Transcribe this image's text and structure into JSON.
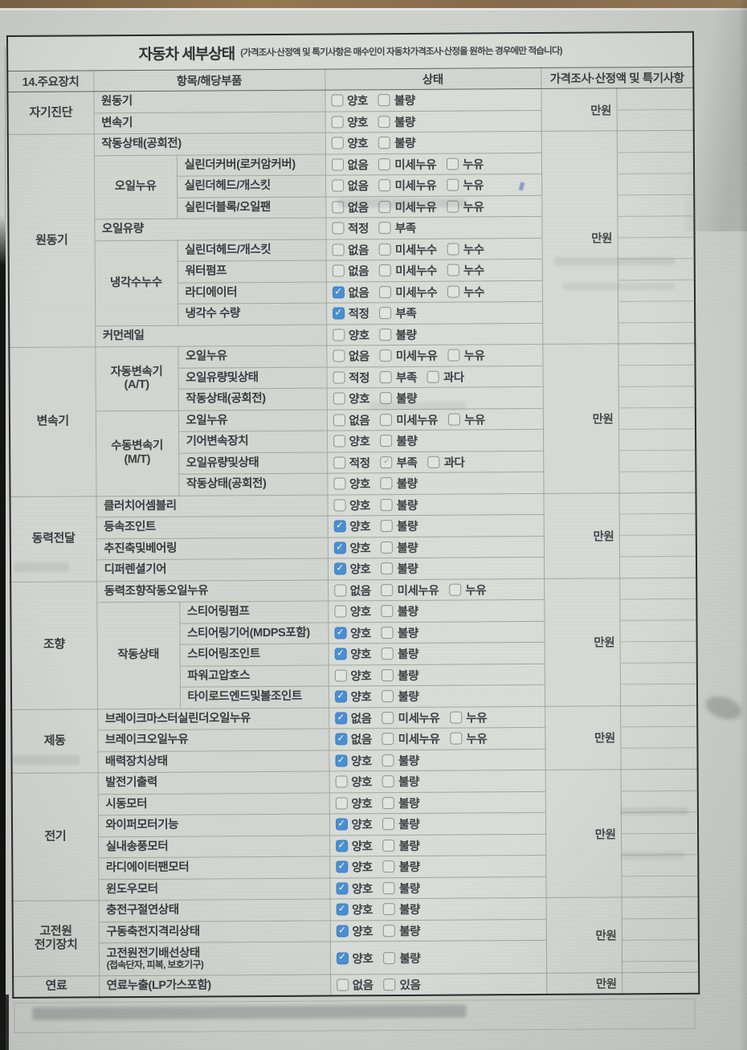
{
  "title": {
    "main": "자동차 세부상태",
    "note": "(가격조사·산정액 및 특기사항은 매수인이 자동차가격조사·산정을 원하는 경우에만 적습니다)"
  },
  "header": {
    "device": "14.주요장치",
    "item": "항목/해당부품",
    "state": "상태",
    "price": "가격조사·산정액 및 특기사항"
  },
  "colors": {
    "checked_blue": "#4a8fd3",
    "paper": "#ced1cc",
    "grid_line": "#a3a8a1"
  },
  "sections": [
    {
      "name": "자기진단",
      "price": "만원",
      "rows": [
        {
          "item": "원동기",
          "options": [
            {
              "label": "양호",
              "mark": "off"
            },
            {
              "label": "불량",
              "mark": "off"
            }
          ]
        },
        {
          "item": "변속기",
          "options": [
            {
              "label": "양호",
              "mark": "off"
            },
            {
              "label": "불량",
              "mark": "off"
            }
          ]
        }
      ]
    },
    {
      "name": "원동기",
      "price": "만원",
      "rows": [
        {
          "item": "작동상태(공회전)",
          "options": [
            {
              "label": "양호",
              "mark": "off"
            },
            {
              "label": "불량",
              "mark": "off"
            }
          ]
        },
        {
          "group": "오일누유",
          "item": "실린더커버(로커암커버)",
          "options": [
            {
              "label": "없음",
              "mark": "off"
            },
            {
              "label": "미세누유",
              "mark": "off"
            },
            {
              "label": "누유",
              "mark": "off"
            }
          ]
        },
        {
          "group": "오일누유",
          "item": "실린더헤드/개스킷",
          "options": [
            {
              "label": "없음",
              "mark": "off"
            },
            {
              "label": "미세누유",
              "mark": "off"
            },
            {
              "label": "누유",
              "mark": "off"
            }
          ]
        },
        {
          "group": "오일누유",
          "item": "실린더블록/오일팬",
          "options": [
            {
              "label": "없음",
              "mark": "off"
            },
            {
              "label": "미세누유",
              "mark": "off"
            },
            {
              "label": "누유",
              "mark": "off"
            }
          ]
        },
        {
          "item": "오일유량",
          "options": [
            {
              "label": "적정",
              "mark": "off"
            },
            {
              "label": "부족",
              "mark": "off"
            }
          ]
        },
        {
          "group": "냉각수누수",
          "item": "실린더헤드/개스킷",
          "options": [
            {
              "label": "없음",
              "mark": "off"
            },
            {
              "label": "미세누수",
              "mark": "off"
            },
            {
              "label": "누수",
              "mark": "off"
            }
          ]
        },
        {
          "group": "냉각수누수",
          "item": "워터펌프",
          "options": [
            {
              "label": "없음",
              "mark": "off"
            },
            {
              "label": "미세누수",
              "mark": "off"
            },
            {
              "label": "누수",
              "mark": "off"
            }
          ]
        },
        {
          "group": "냉각수누수",
          "item": "라디에이터",
          "options": [
            {
              "label": "없음",
              "mark": "on"
            },
            {
              "label": "미세누수",
              "mark": "off"
            },
            {
              "label": "누수",
              "mark": "off"
            }
          ]
        },
        {
          "group": "냉각수누수",
          "item": "냉각수 수량",
          "options": [
            {
              "label": "적정",
              "mark": "on"
            },
            {
              "label": "부족",
              "mark": "off"
            }
          ]
        },
        {
          "item": "커먼레일",
          "options": [
            {
              "label": "양호",
              "mark": "off"
            },
            {
              "label": "불량",
              "mark": "off"
            }
          ]
        }
      ]
    },
    {
      "name": "변속기",
      "price": "만원",
      "rows": [
        {
          "group": "자동변속기\n(A/T)",
          "item": "오일누유",
          "options": [
            {
              "label": "없음",
              "mark": "off"
            },
            {
              "label": "미세누유",
              "mark": "off"
            },
            {
              "label": "누유",
              "mark": "off"
            }
          ]
        },
        {
          "group": "자동변속기\n(A/T)",
          "item": "오일유량및상태",
          "options": [
            {
              "label": "적정",
              "mark": "off"
            },
            {
              "label": "부족",
              "mark": "off"
            },
            {
              "label": "과다",
              "mark": "off"
            }
          ]
        },
        {
          "group": "자동변속기\n(A/T)",
          "item": "작동상태(공회전)",
          "options": [
            {
              "label": "양호",
              "mark": "off"
            },
            {
              "label": "불량",
              "mark": "off"
            }
          ]
        },
        {
          "group": "수동변속기\n(M/T)",
          "item": "오일누유",
          "options": [
            {
              "label": "없음",
              "mark": "off"
            },
            {
              "label": "미세누유",
              "mark": "off"
            },
            {
              "label": "누유",
              "mark": "off"
            }
          ]
        },
        {
          "group": "수동변속기\n(M/T)",
          "item": "기어변속장치",
          "options": [
            {
              "label": "양호",
              "mark": "off"
            },
            {
              "label": "불량",
              "mark": "off"
            }
          ]
        },
        {
          "group": "수동변속기\n(M/T)",
          "item": "오일유량및상태",
          "options": [
            {
              "label": "적정",
              "mark": "off"
            },
            {
              "label": "부족",
              "mark": "faint"
            },
            {
              "label": "과다",
              "mark": "off"
            }
          ]
        },
        {
          "group": "수동변속기\n(M/T)",
          "item": "작동상태(공회전)",
          "options": [
            {
              "label": "양호",
              "mark": "off"
            },
            {
              "label": "불량",
              "mark": "off"
            }
          ]
        }
      ]
    },
    {
      "name": "동력전달",
      "price": "만원",
      "rows": [
        {
          "item": "클러치어셈블리",
          "options": [
            {
              "label": "양호",
              "mark": "off"
            },
            {
              "label": "불량",
              "mark": "off"
            }
          ]
        },
        {
          "item": "등속조인트",
          "options": [
            {
              "label": "양호",
              "mark": "on"
            },
            {
              "label": "불량",
              "mark": "off"
            }
          ]
        },
        {
          "item": "추진축및베어링",
          "options": [
            {
              "label": "양호",
              "mark": "on"
            },
            {
              "label": "불량",
              "mark": "off"
            }
          ]
        },
        {
          "item": "디퍼렌셜기어",
          "options": [
            {
              "label": "양호",
              "mark": "on"
            },
            {
              "label": "불량",
              "mark": "off"
            }
          ]
        }
      ]
    },
    {
      "name": "조향",
      "price": "만원",
      "rows": [
        {
          "item": "동력조향작동오일누유",
          "options": [
            {
              "label": "없음",
              "mark": "off"
            },
            {
              "label": "미세누유",
              "mark": "off"
            },
            {
              "label": "누유",
              "mark": "off"
            }
          ]
        },
        {
          "group": "작동상태",
          "item": "스티어링펌프",
          "options": [
            {
              "label": "양호",
              "mark": "off"
            },
            {
              "label": "불량",
              "mark": "off"
            }
          ]
        },
        {
          "group": "작동상태",
          "item": "스티어링기어(MDPS포함)",
          "options": [
            {
              "label": "양호",
              "mark": "on"
            },
            {
              "label": "불량",
              "mark": "off"
            }
          ]
        },
        {
          "group": "작동상태",
          "item": "스티어링조인트",
          "options": [
            {
              "label": "양호",
              "mark": "on"
            },
            {
              "label": "불량",
              "mark": "off"
            }
          ]
        },
        {
          "group": "작동상태",
          "item": "파워고압호스",
          "options": [
            {
              "label": "양호",
              "mark": "off"
            },
            {
              "label": "불량",
              "mark": "off"
            }
          ]
        },
        {
          "group": "작동상태",
          "item": "타이로드엔드및볼조인트",
          "options": [
            {
              "label": "양호",
              "mark": "on"
            },
            {
              "label": "불량",
              "mark": "off"
            }
          ]
        }
      ]
    },
    {
      "name": "제동",
      "price": "만원",
      "rows": [
        {
          "item": "브레이크마스터실린더오일누유",
          "options": [
            {
              "label": "없음",
              "mark": "on"
            },
            {
              "label": "미세누유",
              "mark": "off"
            },
            {
              "label": "누유",
              "mark": "off"
            }
          ]
        },
        {
          "item": "브레이크오일누유",
          "options": [
            {
              "label": "없음",
              "mark": "on"
            },
            {
              "label": "미세누유",
              "mark": "off"
            },
            {
              "label": "누유",
              "mark": "off"
            }
          ]
        },
        {
          "item": "배력장치상태",
          "options": [
            {
              "label": "양호",
              "mark": "on"
            },
            {
              "label": "불량",
              "mark": "off"
            }
          ]
        }
      ]
    },
    {
      "name": "전기",
      "price": "만원",
      "rows": [
        {
          "item": "발전기출력",
          "options": [
            {
              "label": "양호",
              "mark": "off"
            },
            {
              "label": "불량",
              "mark": "off"
            }
          ]
        },
        {
          "item": "시동모터",
          "options": [
            {
              "label": "양호",
              "mark": "off"
            },
            {
              "label": "불량",
              "mark": "off"
            }
          ]
        },
        {
          "item": "와이퍼모터기능",
          "options": [
            {
              "label": "양호",
              "mark": "on"
            },
            {
              "label": "불량",
              "mark": "off"
            }
          ]
        },
        {
          "item": "실내송풍모터",
          "options": [
            {
              "label": "양호",
              "mark": "on"
            },
            {
              "label": "불량",
              "mark": "off"
            }
          ]
        },
        {
          "item": "라디에이터팬모터",
          "options": [
            {
              "label": "양호",
              "mark": "on"
            },
            {
              "label": "불량",
              "mark": "off"
            }
          ]
        },
        {
          "item": "윈도우모터",
          "options": [
            {
              "label": "양호",
              "mark": "on"
            },
            {
              "label": "불량",
              "mark": "off"
            }
          ]
        }
      ]
    },
    {
      "name": "고전원\n전기장치",
      "price": "만원",
      "rows": [
        {
          "item": "충전구절연상태",
          "options": [
            {
              "label": "양호",
              "mark": "on"
            },
            {
              "label": "불량",
              "mark": "off"
            }
          ]
        },
        {
          "item": "구동축전지격리상태",
          "options": [
            {
              "label": "양호",
              "mark": "on"
            },
            {
              "label": "불량",
              "mark": "off"
            }
          ]
        },
        {
          "item": "고전원전기배선상태",
          "item2": "(접속단자, 피복, 보호기구)",
          "tall": true,
          "options": [
            {
              "label": "양호",
              "mark": "on"
            },
            {
              "label": "불량",
              "mark": "off"
            }
          ]
        }
      ]
    },
    {
      "name": "연료",
      "price": "만원",
      "rows": [
        {
          "item": "연료누출(LP가스포함)",
          "options": [
            {
              "label": "없음",
              "mark": "off"
            },
            {
              "label": "있음",
              "mark": "off"
            }
          ]
        }
      ]
    }
  ]
}
